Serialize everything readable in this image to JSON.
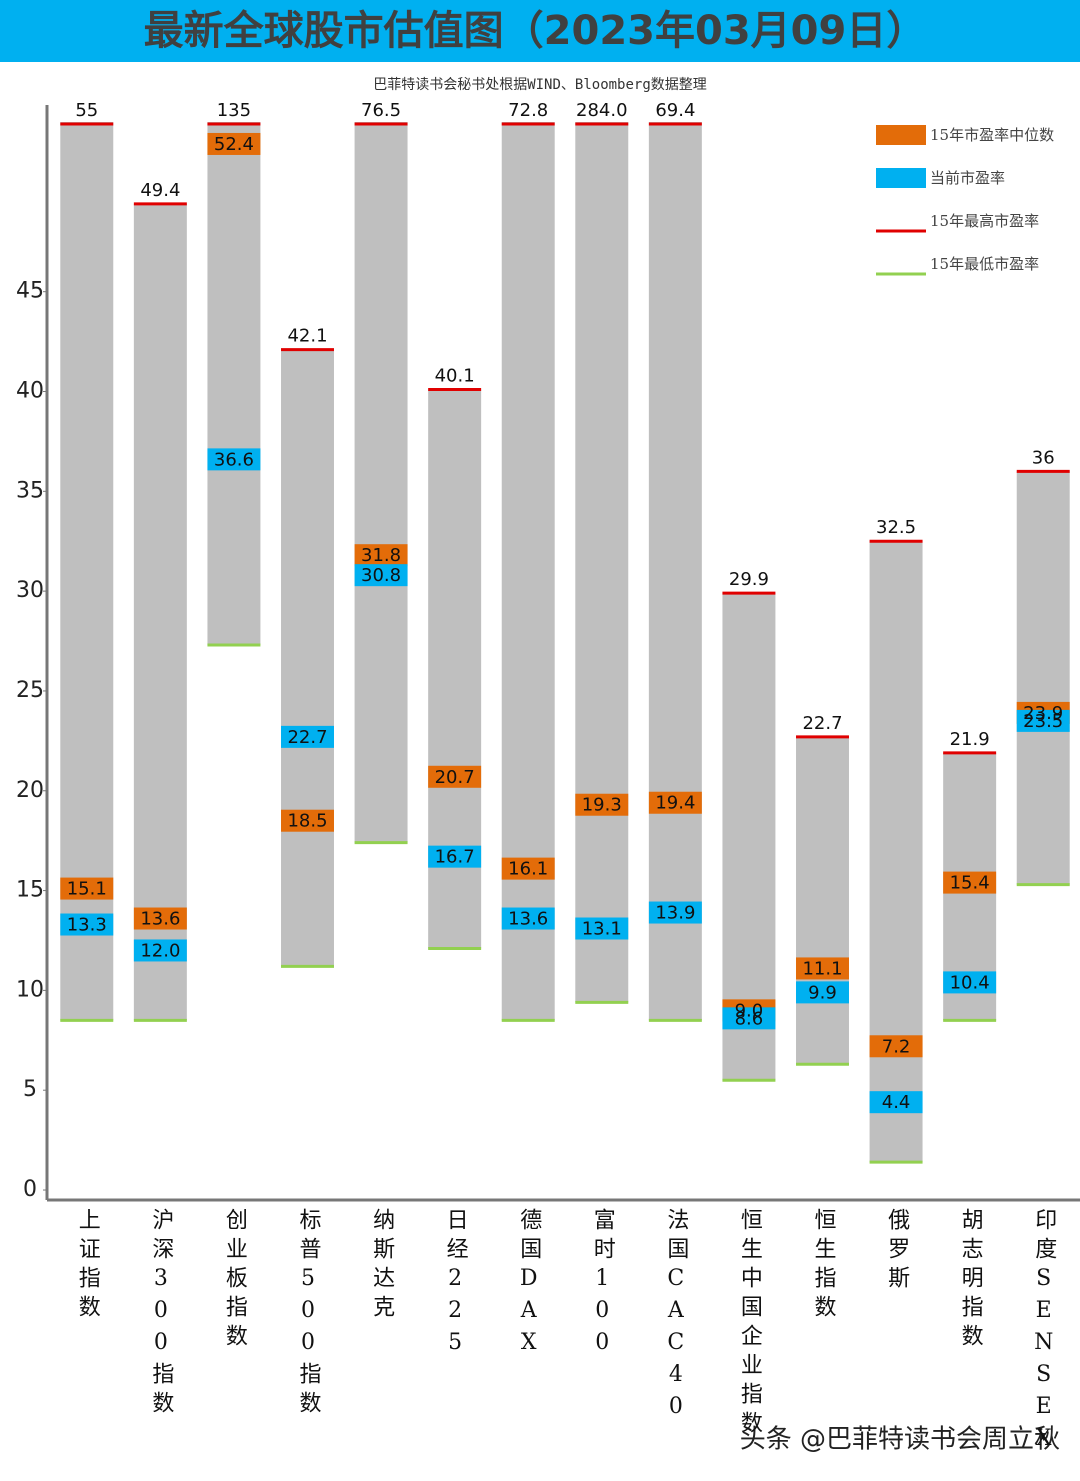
{
  "chart_data": {
    "type": "range-bar",
    "title": "最新全球股市估值图（2023年03月09日）",
    "subtitle": "巴菲特读书会秘书处根据WIND、Bloomberg数据整理",
    "watermark": "头条 @巴菲特读书会周立秋",
    "categories": [
      "上证指数",
      "沪深300指数",
      "创业板指数",
      "标普500指数",
      "纳斯达克",
      "日经225",
      "德国DAX",
      "富时100",
      "法国CAC40",
      "恒生中国企业指数",
      "恒生指数",
      "俄罗斯",
      "胡志明指数",
      "印度SENSEX"
    ],
    "series": [
      {
        "name": "15年市盈率中位数",
        "color": "#e36c09",
        "role": "median",
        "values": [
          15.1,
          13.6,
          52.4,
          18.5,
          31.8,
          20.7,
          16.1,
          19.3,
          19.4,
          9.0,
          11.1,
          7.2,
          15.4,
          23.9
        ],
        "value_labels": [
          "15.1",
          "13.6",
          "52.4",
          "18.5",
          "31.8",
          "20.7",
          "16.1",
          "19.3",
          "19.4",
          "9.0",
          "11.1",
          "7.2",
          "15.4",
          "23.9"
        ]
      },
      {
        "name": "当前市盈率",
        "color": "#00b0f0",
        "role": "current",
        "values": [
          13.3,
          12.0,
          36.6,
          22.7,
          30.8,
          16.7,
          13.6,
          13.1,
          13.9,
          8.6,
          9.9,
          4.4,
          10.4,
          23.5
        ],
        "value_labels": [
          "13.3",
          "12.0",
          "36.6",
          "22.7",
          "30.8",
          "16.7",
          "13.6",
          "13.1",
          "13.9",
          "8.6",
          "9.9",
          "4.4",
          "10.4",
          "23.5"
        ]
      },
      {
        "name": "15年最高市盈率",
        "color": "#e00000",
        "role": "max",
        "values": [
          55,
          49.4,
          135,
          42.1,
          76.5,
          40.1,
          72.8,
          284.0,
          69.4,
          29.9,
          22.7,
          32.5,
          21.9,
          36
        ],
        "value_labels": [
          "55",
          "49.4",
          "135",
          "42.1",
          "76.5",
          "40.1",
          "72.8",
          "284.0",
          "69.4",
          "29.9",
          "22.7",
          "32.5",
          "21.9",
          "36"
        ]
      },
      {
        "name": "15年最低市盈率",
        "color": "#92d050",
        "role": "min",
        "values": [
          8.5,
          8.5,
          27.3,
          11.2,
          17.4,
          12.1,
          8.5,
          9.4,
          8.5,
          5.5,
          6.3,
          1.4,
          8.5,
          15.3
        ]
      }
    ],
    "bar_color": "#bfbfbf",
    "ylim": [
      -0.5,
      53.5
    ],
    "yticks": [
      0,
      5,
      10,
      15,
      20,
      25,
      30,
      35,
      40,
      45
    ],
    "grid": false
  }
}
